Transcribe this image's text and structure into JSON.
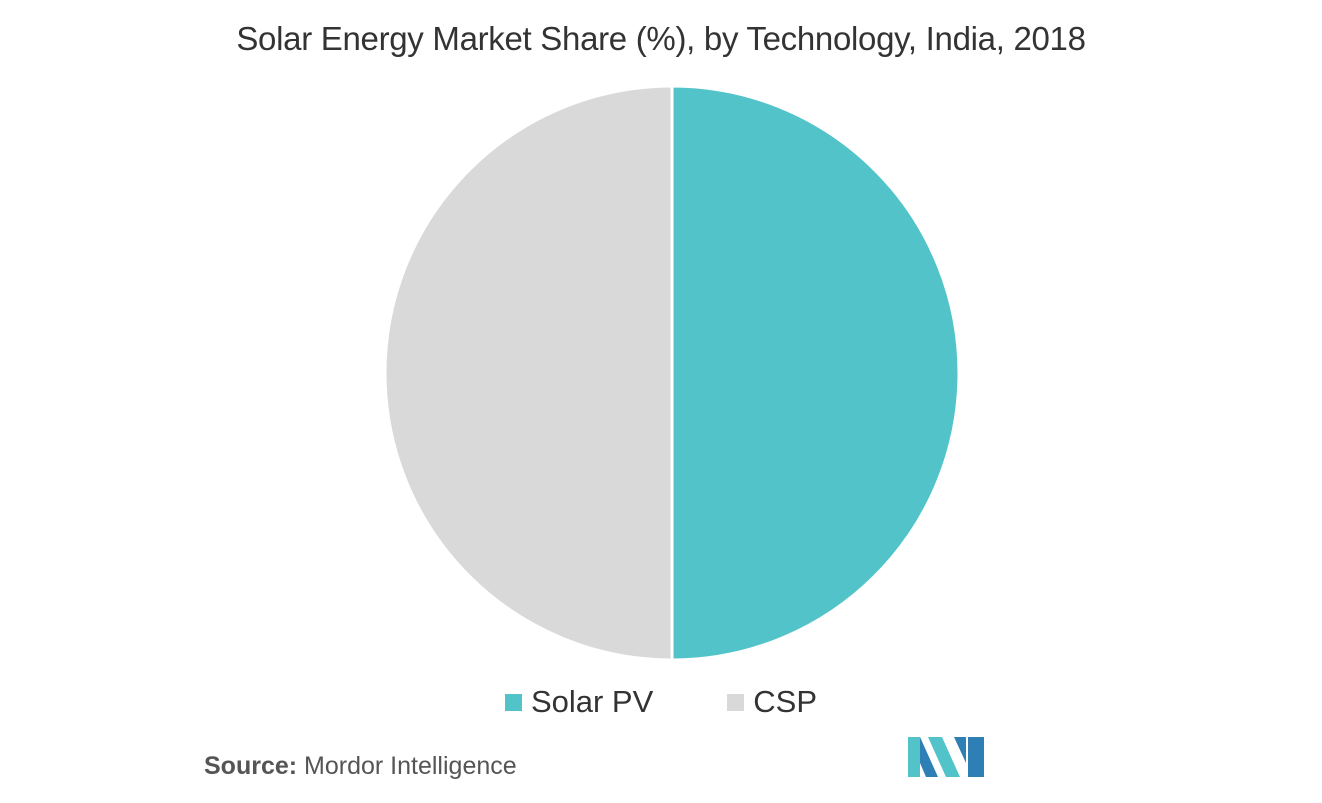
{
  "chart_data": {
    "type": "pie",
    "title": "Solar Energy Market Share (%), by Technology, India, 2018",
    "categories": [
      "Solar PV",
      "CSP"
    ],
    "values": [
      50,
      50
    ],
    "colors": [
      "#52c4c9",
      "#d9d9d9"
    ],
    "start_angle": "12 o'clock, clockwise",
    "legend_position": "bottom"
  },
  "source": {
    "label": "Source:",
    "text": "Mordor Intelligence"
  },
  "logo": {
    "icon": "mordor-intelligence-logo-icon",
    "colors": [
      "#52c4c9",
      "#2e7fb5"
    ]
  }
}
